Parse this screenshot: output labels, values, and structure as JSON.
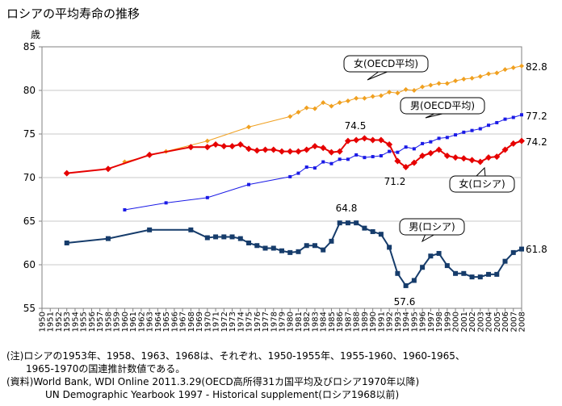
{
  "title": "ロシアの平均寿命の推移",
  "notes": [
    "(注)ロシアの1953年、1958、1963、1968は、それぞれ、1950-1955年、1955-1960、1960-1965、",
    "　　1965-1970の国連推計数値である。",
    "(資料)World Bank, WDI Online 2011.3.29(OECD高所得31カ国平均及びロシア1970年以降)",
    "　　　　UN Demographic Yearbook 1997 - Historical supplement(ロシア1968以前)"
  ],
  "chart_data": {
    "type": "line",
    "ylabel": "歳",
    "ylim": [
      55,
      85
    ],
    "yticks": [
      55,
      60,
      65,
      70,
      75,
      80,
      85
    ],
    "xlim": [
      1950,
      2008
    ],
    "xticks": [
      1950,
      1951,
      1952,
      1953,
      1954,
      1955,
      1956,
      1957,
      1958,
      1959,
      1960,
      1961,
      1962,
      1963,
      1964,
      1965,
      1966,
      1967,
      1968,
      1969,
      1970,
      1971,
      1972,
      1973,
      1974,
      1975,
      1976,
      1977,
      1978,
      1979,
      1980,
      1981,
      1982,
      1983,
      1984,
      1985,
      1986,
      1987,
      1988,
      1989,
      1990,
      1991,
      1992,
      1993,
      1994,
      1995,
      1996,
      1997,
      1998,
      1999,
      2000,
      2001,
      2002,
      2003,
      2004,
      2005,
      2006,
      2007,
      2008
    ],
    "grid": true,
    "series": [
      {
        "name": "女(OECD平均)",
        "color": "#f0a020",
        "marker": "diamond",
        "x": [
          1960,
          1965,
          1970,
          1975,
          1980,
          1981,
          1982,
          1983,
          1984,
          1985,
          1986,
          1987,
          1988,
          1989,
          1990,
          1991,
          1992,
          1993,
          1994,
          1995,
          1996,
          1997,
          1998,
          1999,
          2000,
          2001,
          2002,
          2003,
          2004,
          2005,
          2006,
          2007,
          2008
        ],
        "y": [
          71.8,
          73.0,
          74.2,
          75.8,
          77.0,
          77.5,
          78.0,
          77.9,
          78.6,
          78.2,
          78.6,
          78.8,
          79.1,
          79.1,
          79.3,
          79.4,
          79.8,
          79.7,
          80.1,
          80.0,
          80.4,
          80.6,
          80.8,
          80.8,
          81.1,
          81.3,
          81.4,
          81.6,
          81.9,
          82.0,
          82.4,
          82.6,
          82.8
        ]
      },
      {
        "name": "男(OECD平均)",
        "color": "#1a1ae6",
        "marker": "square",
        "x": [
          1960,
          1965,
          1970,
          1975,
          1980,
          1981,
          1982,
          1983,
          1984,
          1985,
          1986,
          1987,
          1988,
          1989,
          1990,
          1991,
          1992,
          1993,
          1994,
          1995,
          1996,
          1997,
          1998,
          1999,
          2000,
          2001,
          2002,
          2003,
          2004,
          2005,
          2006,
          2007,
          2008
        ],
        "y": [
          66.3,
          67.1,
          67.7,
          69.2,
          70.1,
          70.5,
          71.2,
          71.1,
          71.8,
          71.6,
          72.1,
          72.1,
          72.6,
          72.3,
          72.4,
          72.5,
          73.0,
          72.9,
          73.5,
          73.3,
          73.9,
          74.1,
          74.5,
          74.6,
          74.9,
          75.2,
          75.4,
          75.6,
          76.0,
          76.3,
          76.7,
          76.9,
          77.2
        ]
      },
      {
        "name": "女(ロシア)",
        "color": "#e60000",
        "marker": "diamond",
        "x": [
          1953,
          1958,
          1963,
          1968,
          1970,
          1971,
          1972,
          1973,
          1974,
          1975,
          1976,
          1977,
          1978,
          1979,
          1980,
          1981,
          1982,
          1983,
          1984,
          1985,
          1986,
          1987,
          1988,
          1989,
          1990,
          1991,
          1992,
          1993,
          1994,
          1995,
          1996,
          1997,
          1998,
          1999,
          2000,
          2001,
          2002,
          2003,
          2004,
          2005,
          2006,
          2007,
          2008
        ],
        "y": [
          70.5,
          71.0,
          72.6,
          73.5,
          73.5,
          73.8,
          73.6,
          73.6,
          73.8,
          73.3,
          73.1,
          73.2,
          73.2,
          73.0,
          73.0,
          73.0,
          73.2,
          73.6,
          73.4,
          72.9,
          73.0,
          74.2,
          74.3,
          74.5,
          74.3,
          74.3,
          73.8,
          71.9,
          71.2,
          71.7,
          72.5,
          72.8,
          73.2,
          72.5,
          72.3,
          72.2,
          72.0,
          71.8,
          72.3,
          72.4,
          73.2,
          73.9,
          74.2
        ]
      },
      {
        "name": "男(ロシア)",
        "color": "#163c6b",
        "marker": "square",
        "x": [
          1953,
          1958,
          1963,
          1968,
          1970,
          1971,
          1972,
          1973,
          1974,
          1975,
          1976,
          1977,
          1978,
          1979,
          1980,
          1981,
          1982,
          1983,
          1984,
          1985,
          1986,
          1987,
          1988,
          1989,
          1990,
          1991,
          1992,
          1993,
          1994,
          1995,
          1996,
          1997,
          1998,
          1999,
          2000,
          2001,
          2002,
          2003,
          2004,
          2005,
          2006,
          2007,
          2008
        ],
        "y": [
          62.5,
          63.0,
          64.0,
          64.0,
          63.1,
          63.2,
          63.2,
          63.2,
          63.0,
          62.5,
          62.2,
          61.9,
          61.9,
          61.6,
          61.4,
          61.5,
          62.2,
          62.2,
          61.7,
          62.7,
          64.8,
          64.8,
          64.8,
          64.2,
          63.8,
          63.5,
          62.0,
          59.0,
          57.6,
          58.2,
          59.7,
          61.0,
          61.3,
          59.9,
          59.0,
          59.0,
          58.6,
          58.6,
          58.9,
          58.9,
          60.4,
          61.4,
          61.8
        ]
      }
    ],
    "callouts": [
      "女(OECD平均)",
      "男(OECD平均)",
      "女(ロシア)",
      "男(ロシア)"
    ],
    "annotations": [
      "74.5",
      "71.2",
      "64.8",
      "57.6",
      "82.8",
      "77.2",
      "74.2",
      "61.8"
    ]
  }
}
